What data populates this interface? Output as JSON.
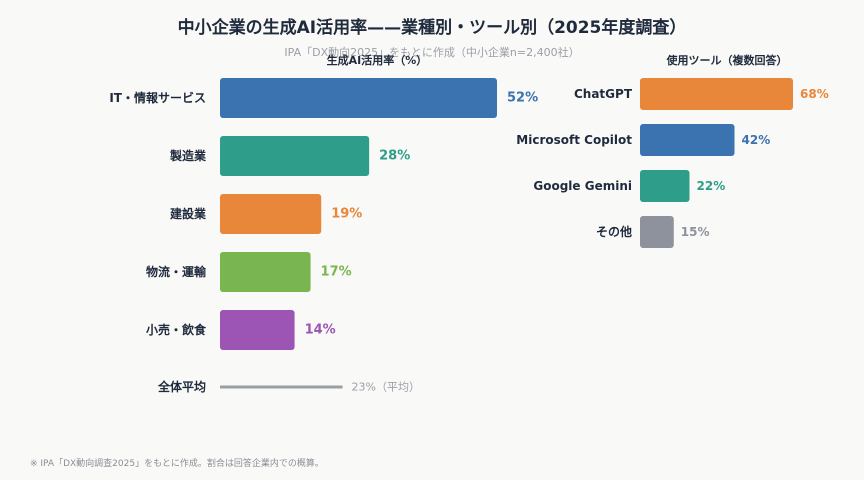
{
  "title": "中小企業の生成AI活用率——業種別・ツール別（2025年度調査）",
  "subtitle": "IPA「DX動向2025」をもとに作成（中小企業n=2,400社）",
  "footer": "※ IPA「DX動向調査2025」をもとに作成。割合は回答企業内での概算。",
  "chart_data": [
    {
      "type": "bar",
      "orientation": "horizontal",
      "title": "生成AI活用率（%）",
      "categories": [
        "IT・情報サービス",
        "製造業",
        "建設業",
        "物流・運輸",
        "小売・飲食"
      ],
      "values": [
        52,
        28,
        19,
        17,
        14
      ],
      "value_labels": [
        "52%",
        "28%",
        "19%",
        "17%",
        "14%"
      ],
      "colors": [
        "#3b72b0",
        "#2e9e8a",
        "#e8873a",
        "#79b550",
        "#9c54b5"
      ],
      "reference": {
        "label": "全体平均",
        "value": 23,
        "value_label": "23%（平均）",
        "color": "#9a9ea6"
      },
      "xlim": [
        0,
        52
      ]
    },
    {
      "type": "bar",
      "orientation": "horizontal",
      "title": "使用ツール（複数回答）",
      "categories": [
        "ChatGPT",
        "Microsoft Copilot",
        "Google Gemini",
        "その他"
      ],
      "values": [
        68,
        42,
        22,
        15
      ],
      "value_labels": [
        "68%",
        "42%",
        "22%",
        "15%"
      ],
      "colors": [
        "#e8873a",
        "#3b72b0",
        "#2e9e8a",
        "#8e929c"
      ],
      "xlim": [
        0,
        68
      ]
    }
  ]
}
